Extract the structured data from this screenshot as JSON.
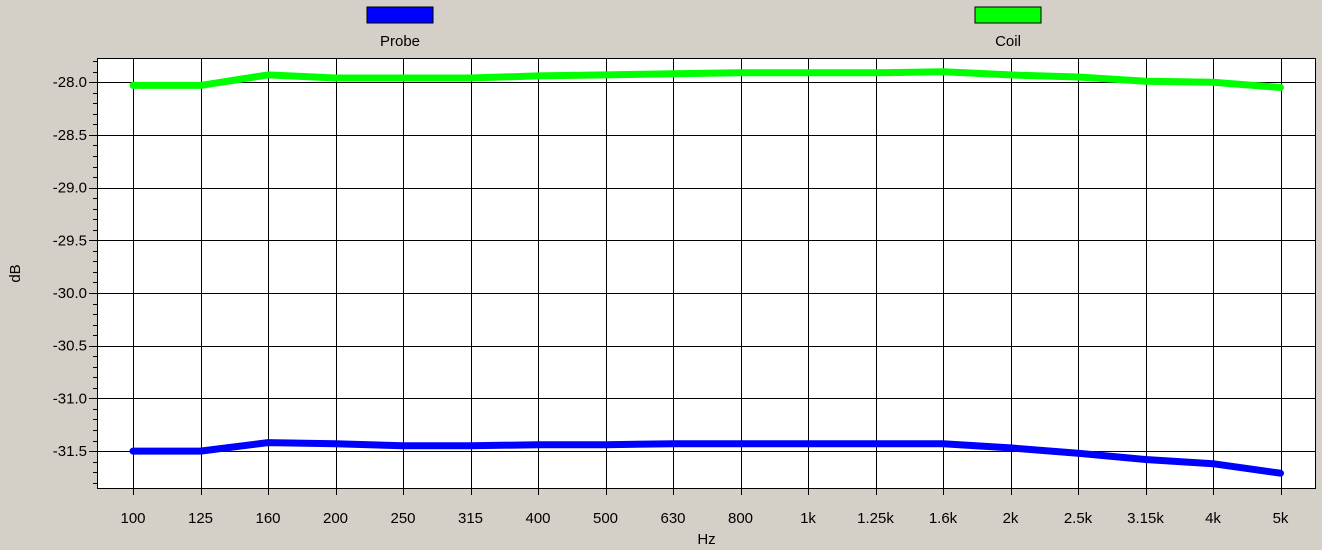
{
  "chart_data": {
    "type": "line",
    "xlabel": "Hz",
    "ylabel": "dB",
    "categories": [
      "100",
      "125",
      "160",
      "200",
      "250",
      "315",
      "400",
      "500",
      "630",
      "800",
      "1k",
      "1.25k",
      "1.6k",
      "2k",
      "2.5k",
      "3.15k",
      "4k",
      "5k"
    ],
    "yticks": [
      "-28.0",
      "-28.5",
      "-29.0",
      "-29.5",
      "-30.0",
      "-30.5",
      "-31.0",
      "-31.5"
    ],
    "ylim": [
      -31.86,
      -27.77
    ],
    "grid": true,
    "legend_position": "top",
    "series": [
      {
        "name": "Probe",
        "color": "#0000ff",
        "values": [
          -31.5,
          -31.5,
          -31.42,
          -31.43,
          -31.45,
          -31.45,
          -31.44,
          -31.44,
          -31.43,
          -31.43,
          -31.43,
          -31.43,
          -31.43,
          -31.47,
          -31.52,
          -31.58,
          -31.62,
          -31.71
        ]
      },
      {
        "name": "Coil",
        "color": "#00ff00",
        "values": [
          -28.03,
          -28.03,
          -27.93,
          -27.96,
          -27.96,
          -27.96,
          -27.94,
          -27.93,
          -27.92,
          -27.91,
          -27.91,
          -27.91,
          -27.9,
          -27.93,
          -27.95,
          -27.99,
          -28.0,
          -28.05
        ]
      }
    ]
  }
}
